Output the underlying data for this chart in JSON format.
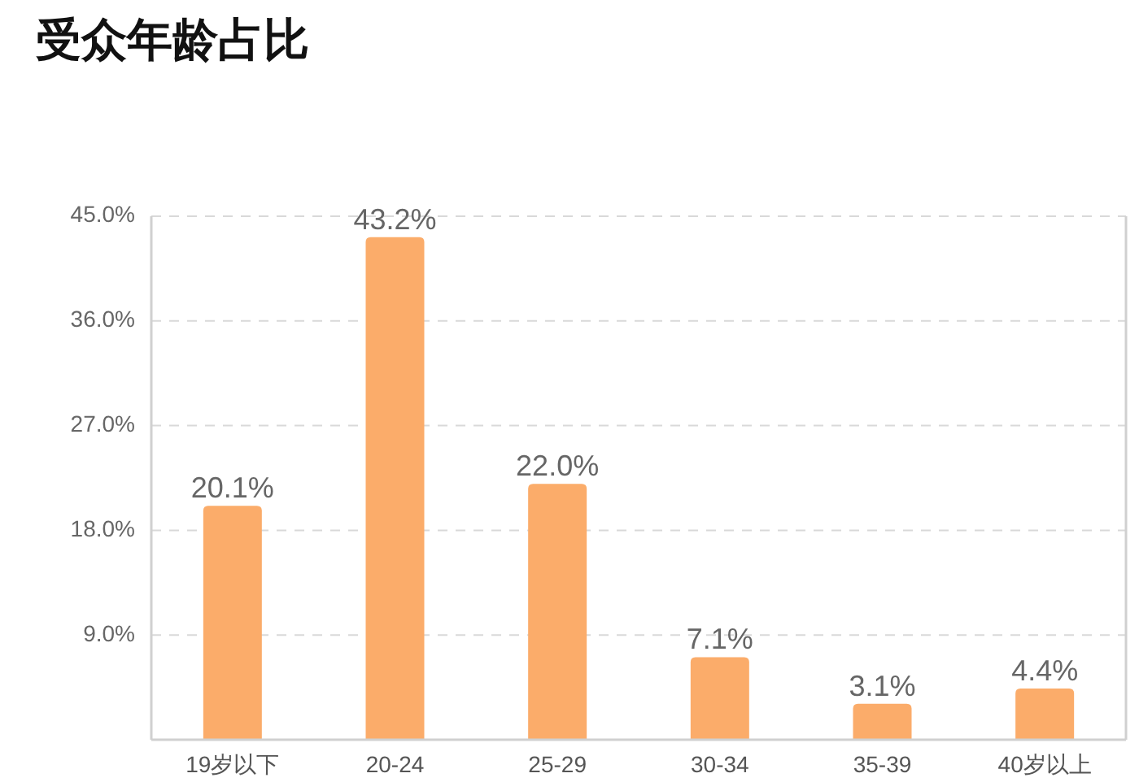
{
  "chart_data": {
    "type": "bar",
    "title": "受众年龄占比",
    "categories": [
      "19岁以下",
      "20-24",
      "25-29",
      "30-34",
      "35-39",
      "40岁以上"
    ],
    "values": [
      20.1,
      43.2,
      22.0,
      7.1,
      3.1,
      4.4
    ],
    "value_labels": [
      "20.1%",
      "43.2%",
      "22.0%",
      "7.1%",
      "3.1%",
      "4.4%"
    ],
    "color": "#fbac6a",
    "ylim": [
      0,
      45
    ],
    "yticks": [
      {
        "value": 9,
        "label": "9.0%"
      },
      {
        "value": 18,
        "label": "18.0%"
      },
      {
        "value": 27,
        "label": "27.0%"
      },
      {
        "value": 36,
        "label": "36.0%"
      },
      {
        "value": 45,
        "label": "45.0%"
      }
    ],
    "grid": "y"
  }
}
